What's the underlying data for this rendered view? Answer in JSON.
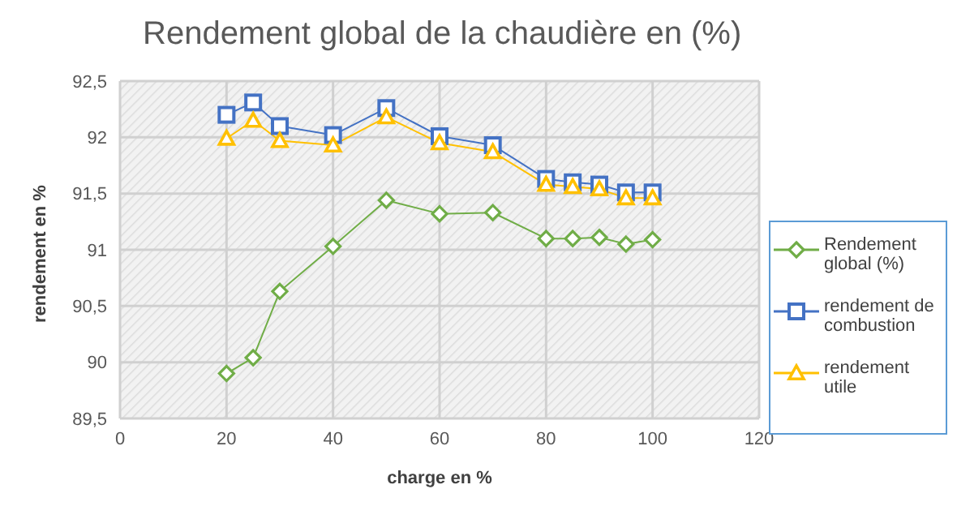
{
  "chart_data": {
    "type": "line",
    "title": "Rendement global de la chaudière en  (%)",
    "xlabel": "charge en %",
    "ylabel": "rendement en %",
    "x": [
      20,
      25,
      30,
      40,
      50,
      60,
      70,
      80,
      85,
      90,
      95,
      100
    ],
    "series": [
      {
        "name": "Rendement global (%)",
        "color": "#70ad47",
        "marker": "diamond",
        "values": [
          89.9,
          90.04,
          90.63,
          91.03,
          91.44,
          91.32,
          91.33,
          91.1,
          91.1,
          91.11,
          91.05,
          91.09
        ]
      },
      {
        "name": "rendement de combustion",
        "color": "#4472c4",
        "marker": "square",
        "values": [
          92.2,
          92.31,
          92.1,
          92.02,
          92.26,
          92.01,
          91.93,
          91.63,
          91.6,
          91.58,
          91.51,
          91.51
        ]
      },
      {
        "name": "rendement utile",
        "color": "#ffc000",
        "marker": "triangle",
        "values": [
          91.99,
          92.15,
          91.97,
          91.93,
          92.18,
          91.95,
          91.87,
          91.58,
          91.56,
          91.54,
          91.46,
          91.46
        ]
      }
    ],
    "xlim": [
      0,
      120
    ],
    "xticks": [
      0,
      20,
      40,
      60,
      80,
      100,
      120
    ],
    "ylim": [
      89.5,
      92.5
    ],
    "yticks": [
      {
        "value": 89.5,
        "label": "89,5"
      },
      90,
      {
        "value": 90.5,
        "label": "90,5"
      },
      91,
      {
        "value": 91.5,
        "label": "91,5"
      },
      92,
      {
        "value": 92.5,
        "label": "92,5"
      }
    ],
    "grid": true,
    "legend": "right"
  }
}
